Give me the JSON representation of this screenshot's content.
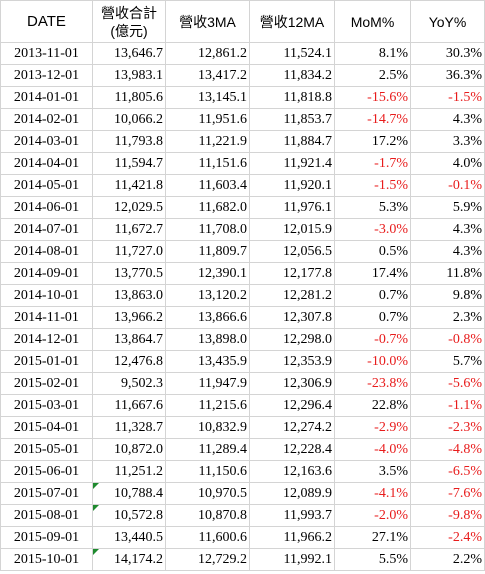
{
  "headers": {
    "date": "DATE",
    "revenue_line1": "營收合計",
    "revenue_line2": "(億元)",
    "ma3": "營收3MA",
    "ma12": "營收12MA",
    "mom": "MoM%",
    "yoy": "YoY%"
  },
  "colors": {
    "negative": "#e81c1c",
    "grid": "#d4d4d4",
    "comment_flag": "#1e8a2e"
  },
  "rows": [
    {
      "date": "2013-11-01",
      "rev": "13,646.7",
      "ma3": "12,861.2",
      "ma12": "11,524.1",
      "mom": "8.1%",
      "yoy": "30.3%",
      "mom_neg": false,
      "yoy_neg": false,
      "flag": false
    },
    {
      "date": "2013-12-01",
      "rev": "13,983.1",
      "ma3": "13,417.2",
      "ma12": "11,834.2",
      "mom": "2.5%",
      "yoy": "36.3%",
      "mom_neg": false,
      "yoy_neg": false,
      "flag": false
    },
    {
      "date": "2014-01-01",
      "rev": "11,805.6",
      "ma3": "13,145.1",
      "ma12": "11,818.8",
      "mom": "-15.6%",
      "yoy": "-1.5%",
      "mom_neg": true,
      "yoy_neg": true,
      "flag": false
    },
    {
      "date": "2014-02-01",
      "rev": "10,066.2",
      "ma3": "11,951.6",
      "ma12": "11,853.7",
      "mom": "-14.7%",
      "yoy": "4.3%",
      "mom_neg": true,
      "yoy_neg": false,
      "flag": false
    },
    {
      "date": "2014-03-01",
      "rev": "11,793.8",
      "ma3": "11,221.9",
      "ma12": "11,884.7",
      "mom": "17.2%",
      "yoy": "3.3%",
      "mom_neg": false,
      "yoy_neg": false,
      "flag": false
    },
    {
      "date": "2014-04-01",
      "rev": "11,594.7",
      "ma3": "11,151.6",
      "ma12": "11,921.4",
      "mom": "-1.7%",
      "yoy": "4.0%",
      "mom_neg": true,
      "yoy_neg": false,
      "flag": false
    },
    {
      "date": "2014-05-01",
      "rev": "11,421.8",
      "ma3": "11,603.4",
      "ma12": "11,920.1",
      "mom": "-1.5%",
      "yoy": "-0.1%",
      "mom_neg": true,
      "yoy_neg": true,
      "flag": false
    },
    {
      "date": "2014-06-01",
      "rev": "12,029.5",
      "ma3": "11,682.0",
      "ma12": "11,976.1",
      "mom": "5.3%",
      "yoy": "5.9%",
      "mom_neg": false,
      "yoy_neg": false,
      "flag": false
    },
    {
      "date": "2014-07-01",
      "rev": "11,672.7",
      "ma3": "11,708.0",
      "ma12": "12,015.9",
      "mom": "-3.0%",
      "yoy": "4.3%",
      "mom_neg": true,
      "yoy_neg": false,
      "flag": false
    },
    {
      "date": "2014-08-01",
      "rev": "11,727.0",
      "ma3": "11,809.7",
      "ma12": "12,056.5",
      "mom": "0.5%",
      "yoy": "4.3%",
      "mom_neg": false,
      "yoy_neg": false,
      "flag": false
    },
    {
      "date": "2014-09-01",
      "rev": "13,770.5",
      "ma3": "12,390.1",
      "ma12": "12,177.8",
      "mom": "17.4%",
      "yoy": "11.8%",
      "mom_neg": false,
      "yoy_neg": false,
      "flag": false
    },
    {
      "date": "2014-10-01",
      "rev": "13,863.0",
      "ma3": "13,120.2",
      "ma12": "12,281.2",
      "mom": "0.7%",
      "yoy": "9.8%",
      "mom_neg": false,
      "yoy_neg": false,
      "flag": false
    },
    {
      "date": "2014-11-01",
      "rev": "13,966.2",
      "ma3": "13,866.6",
      "ma12": "12,307.8",
      "mom": "0.7%",
      "yoy": "2.3%",
      "mom_neg": false,
      "yoy_neg": false,
      "flag": false
    },
    {
      "date": "2014-12-01",
      "rev": "13,864.7",
      "ma3": "13,898.0",
      "ma12": "12,298.0",
      "mom": "-0.7%",
      "yoy": "-0.8%",
      "mom_neg": true,
      "yoy_neg": true,
      "flag": false
    },
    {
      "date": "2015-01-01",
      "rev": "12,476.8",
      "ma3": "13,435.9",
      "ma12": "12,353.9",
      "mom": "-10.0%",
      "yoy": "5.7%",
      "mom_neg": true,
      "yoy_neg": false,
      "flag": false
    },
    {
      "date": "2015-02-01",
      "rev": "9,502.3",
      "ma3": "11,947.9",
      "ma12": "12,306.9",
      "mom": "-23.8%",
      "yoy": "-5.6%",
      "mom_neg": true,
      "yoy_neg": true,
      "flag": false
    },
    {
      "date": "2015-03-01",
      "rev": "11,667.6",
      "ma3": "11,215.6",
      "ma12": "12,296.4",
      "mom": "22.8%",
      "yoy": "-1.1%",
      "mom_neg": false,
      "yoy_neg": true,
      "flag": false
    },
    {
      "date": "2015-04-01",
      "rev": "11,328.7",
      "ma3": "10,832.9",
      "ma12": "12,274.2",
      "mom": "-2.9%",
      "yoy": "-2.3%",
      "mom_neg": true,
      "yoy_neg": true,
      "flag": false
    },
    {
      "date": "2015-05-01",
      "rev": "10,872.0",
      "ma3": "11,289.4",
      "ma12": "12,228.4",
      "mom": "-4.0%",
      "yoy": "-4.8%",
      "mom_neg": true,
      "yoy_neg": true,
      "flag": false
    },
    {
      "date": "2015-06-01",
      "rev": "11,251.2",
      "ma3": "11,150.6",
      "ma12": "12,163.6",
      "mom": "3.5%",
      "yoy": "-6.5%",
      "mom_neg": false,
      "yoy_neg": true,
      "flag": false
    },
    {
      "date": "2015-07-01",
      "rev": "10,788.4",
      "ma3": "10,970.5",
      "ma12": "12,089.9",
      "mom": "-4.1%",
      "yoy": "-7.6%",
      "mom_neg": true,
      "yoy_neg": true,
      "flag": true
    },
    {
      "date": "2015-08-01",
      "rev": "10,572.8",
      "ma3": "10,870.8",
      "ma12": "11,993.7",
      "mom": "-2.0%",
      "yoy": "-9.8%",
      "mom_neg": true,
      "yoy_neg": true,
      "flag": true
    },
    {
      "date": "2015-09-01",
      "rev": "13,440.5",
      "ma3": "11,600.6",
      "ma12": "11,966.2",
      "mom": "27.1%",
      "yoy": "-2.4%",
      "mom_neg": false,
      "yoy_neg": true,
      "flag": false
    },
    {
      "date": "2015-10-01",
      "rev": "14,174.2",
      "ma3": "12,729.2",
      "ma12": "11,992.1",
      "mom": "5.5%",
      "yoy": "2.2%",
      "mom_neg": false,
      "yoy_neg": false,
      "flag": true
    }
  ]
}
